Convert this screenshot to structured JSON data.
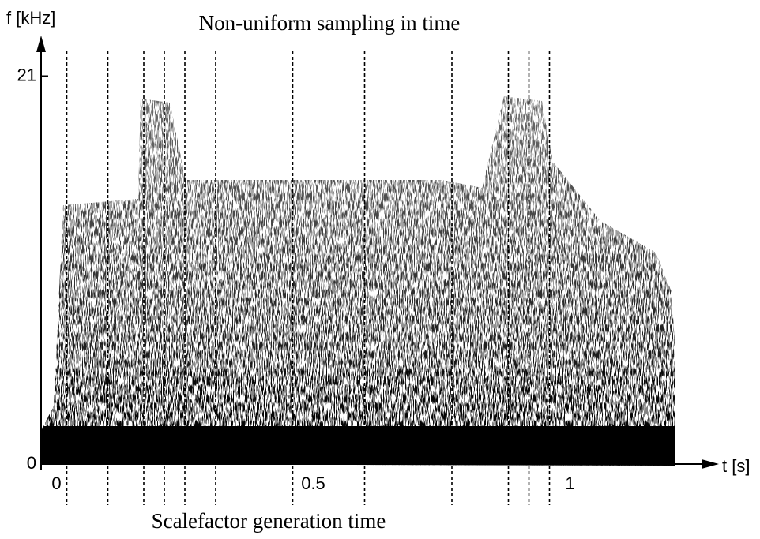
{
  "chart_data": {
    "type": "spectrogram",
    "title": "Non-uniform sampling in time",
    "caption": "Scalefactor generation time",
    "x_label": "t [s]",
    "y_label": "f [kHz]",
    "xlim": [
      -0.03,
      1.29
    ],
    "ylim": [
      0,
      23.2
    ],
    "xticks": [
      0,
      0.5,
      1
    ],
    "yticks": [
      0,
      21
    ],
    "sampling_times": [
      0.02,
      0.1,
      0.17,
      0.21,
      0.25,
      0.31,
      0.46,
      0.6,
      0.77,
      0.88,
      0.92,
      0.96
    ],
    "color": "#000000"
  }
}
